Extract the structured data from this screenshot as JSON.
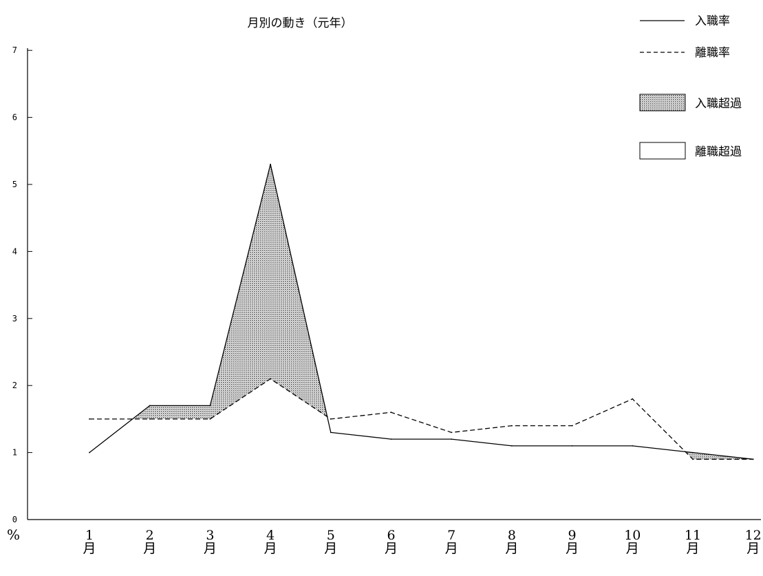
{
  "chart_data": {
    "type": "line",
    "title": "月別の動き（元年）",
    "categories": [
      "1月",
      "2月",
      "3月",
      "4月",
      "5月",
      "6月",
      "7月",
      "8月",
      "9月",
      "10月",
      "11月",
      "12月"
    ],
    "series": [
      {
        "name": "入職率",
        "style": "solid",
        "values": [
          1.0,
          1.7,
          1.7,
          5.3,
          1.3,
          1.2,
          1.2,
          1.1,
          1.1,
          1.1,
          1.0,
          0.9
        ]
      },
      {
        "name": "離職率",
        "style": "dashed",
        "values": [
          1.5,
          1.5,
          1.5,
          2.1,
          1.5,
          1.6,
          1.3,
          1.4,
          1.4,
          1.8,
          0.9,
          0.9
        ]
      }
    ],
    "areas": [
      {
        "name": "入職超過",
        "fill": "dotted"
      },
      {
        "name": "離職超過",
        "fill": "none"
      }
    ],
    "y_ticks": [
      "0",
      "1",
      "2",
      "3",
      "4",
      "5",
      "6",
      "7"
    ],
    "ylim": [
      0,
      7
    ],
    "y_unit": "%",
    "xlabel": "",
    "ylabel": "",
    "grid": false,
    "legend_position": "top-right",
    "colors": {
      "line": "#000000",
      "area_dots": "#555555"
    }
  }
}
